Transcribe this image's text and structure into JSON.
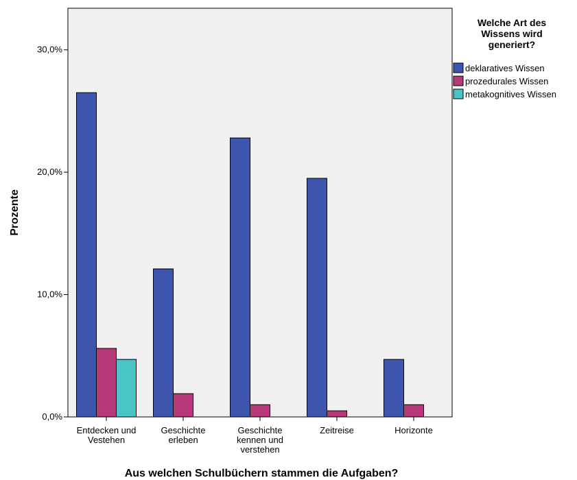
{
  "chart_data": {
    "type": "bar",
    "categories": [
      [
        "Entdecken und",
        "Vestehen"
      ],
      [
        "Geschichte",
        "erleben"
      ],
      [
        "Geschichte",
        "kennen und",
        "verstehen"
      ],
      [
        "Zeitreise"
      ],
      [
        "Horizonte"
      ]
    ],
    "series": [
      {
        "name": "deklaratives Wissen",
        "color": "#3d55ac",
        "values": [
          26.5,
          12.1,
          22.8,
          19.5,
          4.7
        ]
      },
      {
        "name": "prozedurales Wissen",
        "color": "#b8397a",
        "values": [
          5.6,
          1.9,
          1.0,
          0.5,
          1.0
        ]
      },
      {
        "name": "metakognitives Wissen",
        "color": "#49c5c8",
        "values": [
          4.7,
          0,
          0,
          0,
          0
        ]
      }
    ],
    "xlabel": "Aus welchen  Schulbüchern stammen die Aufgaben?",
    "ylabel": "Prozente",
    "ylim": [
      0,
      33.4
    ],
    "yticks": [
      0,
      10,
      20,
      30
    ],
    "ytick_labels": [
      "0,0%",
      "10,0%",
      "20,0%",
      "30,0%"
    ],
    "legend": {
      "title": [
        "Welche Art des",
        "Wissens wird",
        "generiert?"
      ],
      "position": "top-right"
    },
    "plot_background": "#f0f0f0",
    "grid": false
  }
}
